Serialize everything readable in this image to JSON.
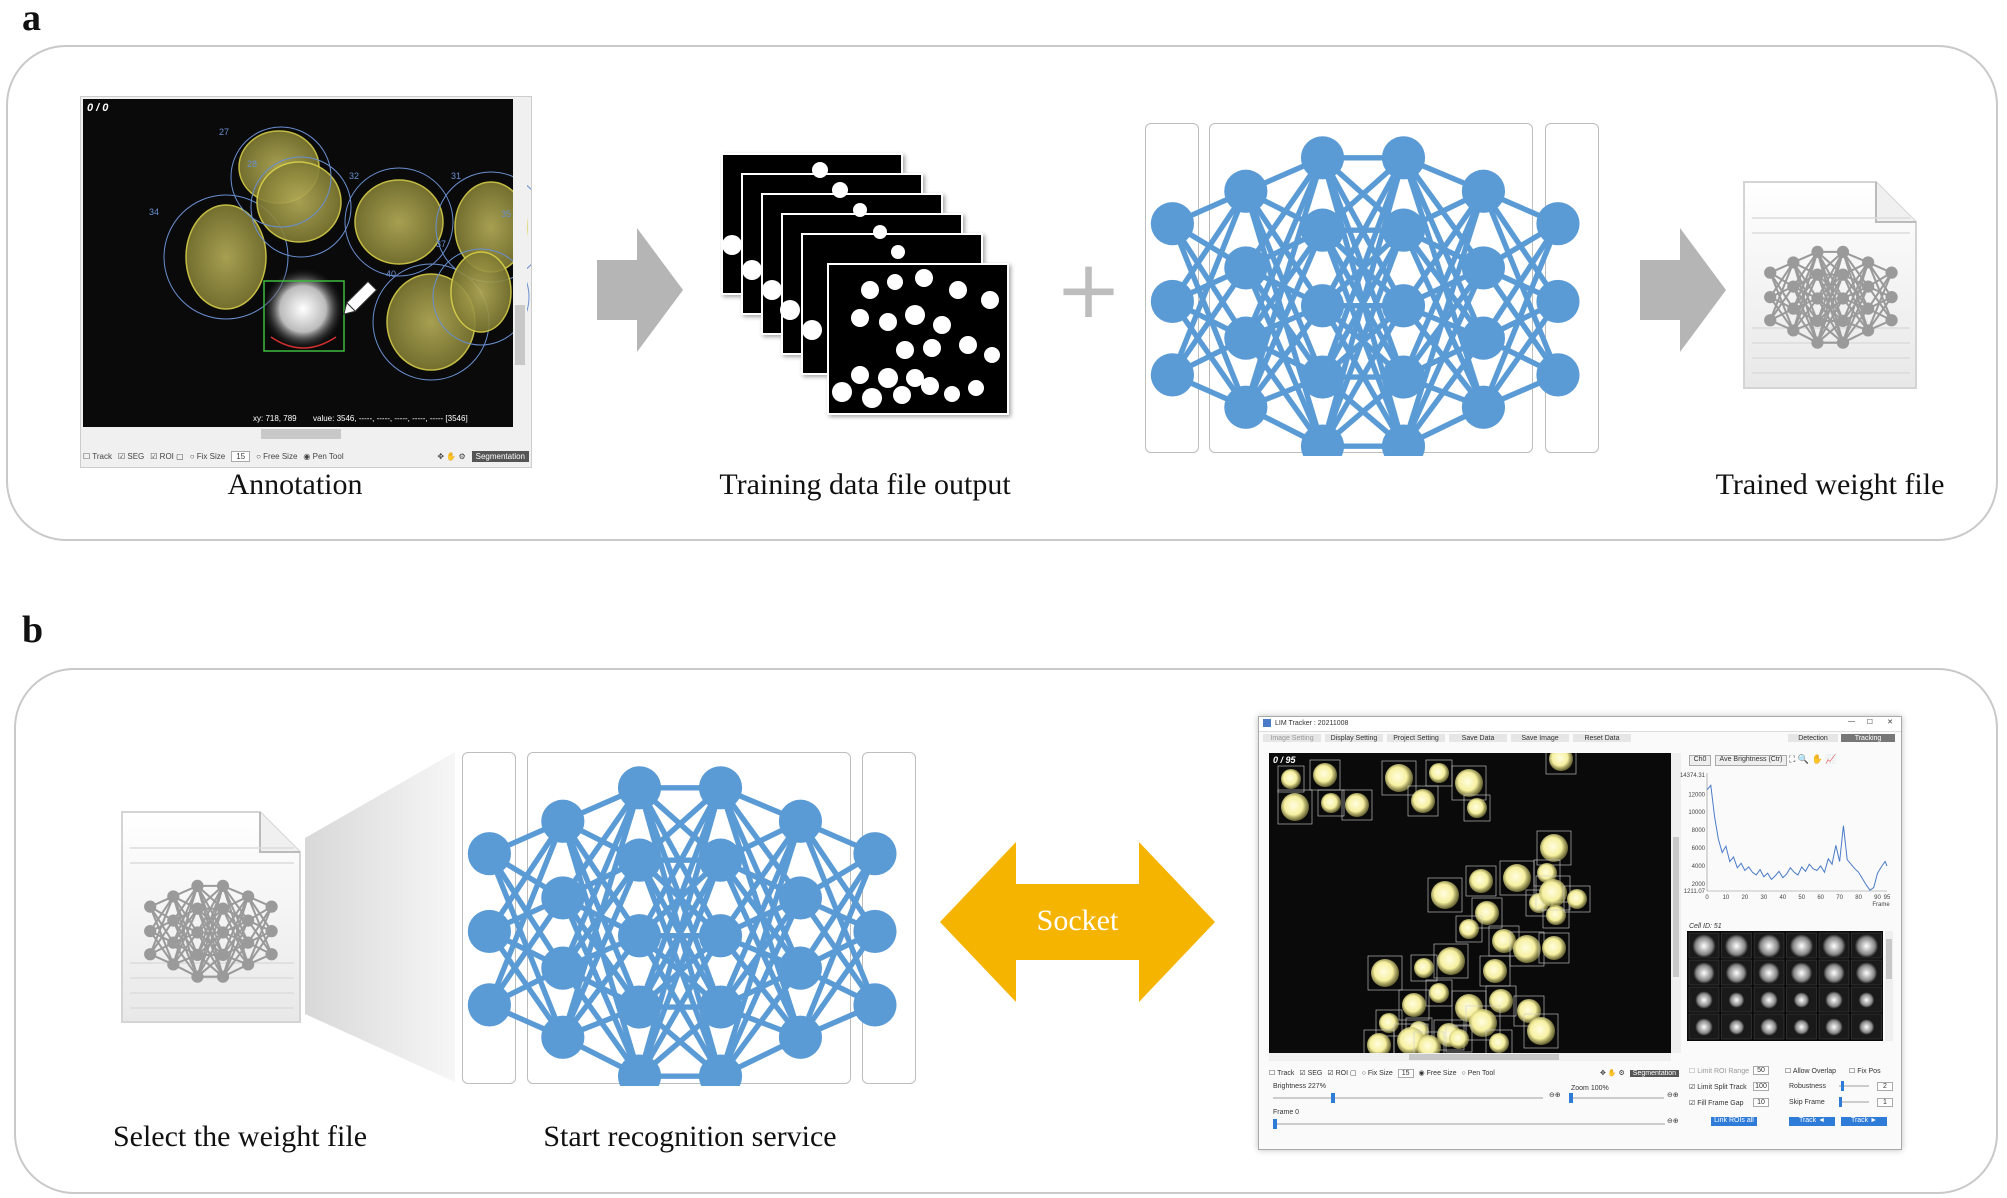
{
  "panel_a": {
    "letter": "a",
    "annotation_caption": "Annotation",
    "training_caption": "Training data file output",
    "trained_caption": "Trained weight file",
    "annotation_ui": {
      "frame_counter": "0 / 0",
      "cell_ids": [
        "27",
        "28",
        "32",
        "31",
        "34",
        "37",
        "40",
        "35"
      ],
      "status_xy": "xy: 718, 789",
      "status_value": "value: 3546, -----, -----, -----, -----, -----   [3546]",
      "toolbar": {
        "track": "Track",
        "seg": "SEG",
        "roi": "ROI",
        "fix_size": "Fix Size",
        "fix_size_value": "15",
        "free_size": "Free Size",
        "pen_tool": "Pen Tool",
        "segmentation": "Segmentation"
      }
    },
    "plus_symbol": "+"
  },
  "panel_b": {
    "letter": "b",
    "select_caption": "Select the weight file",
    "service_caption": "Start recognition service",
    "socket_label": "Socket",
    "app": {
      "window_title": "LIM Tracker : 20211008",
      "tabs": [
        "Image Setting",
        "Display Setting",
        "Project Setting",
        "Save Data",
        "Save Image",
        "Reset Data"
      ],
      "mode_tabs": [
        "Detection",
        "Tracking"
      ],
      "frame_counter": "0 / 95",
      "channel": "Ch0",
      "measure": "Ave Brightness (Ctr)",
      "chart_y_max": "14374.31",
      "chart_y_min": "1211.07",
      "cell_id": "Cell ID: 51",
      "bottom": {
        "track": "Track",
        "seg": "SEG",
        "roi": "ROI",
        "fix_size": "Fix Size",
        "fix_size_value": "15",
        "free_size": "Free Size",
        "pen_tool": "Pen Tool",
        "segmentation": "Segmentation",
        "brightness": "Brightness 227%",
        "zoom": "Zoom 100%",
        "frame": "Frame 0"
      },
      "track_settings": {
        "limit_roi_range": "Limit ROI Range",
        "limit_roi_value": "50",
        "limit_split_track": "Limit Split Track",
        "limit_split_value": "100",
        "fill_frame_gap": "Fill Frame Gap",
        "fill_gap_value": "10",
        "allow_overlap": "Allow Overlap",
        "fix_pos": "Fix Pos",
        "robustness": "Robustness",
        "robustness_value": "2",
        "skip_frame": "Skip Frame",
        "skip_value": "1",
        "link_rois_all": "Link ROIs all",
        "track_back": "Track ◄",
        "track_forward": "Track ►"
      }
    }
  },
  "chart_data": {
    "type": "line",
    "title": "",
    "xlabel": "Frame",
    "ylabel": "",
    "xlim": [
      0,
      95
    ],
    "ylim": [
      1211.07,
      14374.31
    ],
    "x_ticks": [
      "0",
      "10",
      "20",
      "30",
      "40",
      "50",
      "60",
      "70",
      "80",
      "90",
      "95"
    ],
    "y_ticks": [
      "2000",
      "4000",
      "6000",
      "8000",
      "10000",
      "12000"
    ],
    "series": [
      {
        "color": "#4a7bc8",
        "x": [
          0,
          2,
          4,
          6,
          8,
          10,
          12,
          14,
          16,
          18,
          20,
          22,
          24,
          26,
          28,
          30,
          32,
          34,
          36,
          38,
          40,
          42,
          44,
          46,
          48,
          50,
          52,
          54,
          56,
          58,
          60,
          62,
          64,
          66,
          68,
          70,
          72,
          74,
          76,
          78,
          80,
          82,
          84,
          86,
          88,
          90,
          92,
          94,
          95
        ],
        "y": [
          12500,
          13000,
          9500,
          7000,
          5500,
          6200,
          4500,
          5000,
          3800,
          4300,
          3500,
          3900,
          3300,
          3000,
          3600,
          2800,
          3200,
          2500,
          2900,
          3400,
          2700,
          3100,
          3800,
          3300,
          3000,
          3900,
          3400,
          4200,
          3700,
          3500,
          4000,
          3300,
          4800,
          4200,
          6300,
          4500,
          8500,
          4700,
          4200,
          3700,
          3300,
          2600,
          1900,
          1300,
          1600,
          3200,
          3900,
          4500,
          4000
        ]
      }
    ]
  },
  "colors": {
    "node": "#5b9bd5",
    "edge": "#5b9bd5",
    "arrow_gray": "#b5b5b5",
    "socket_arrow": "#f5b400",
    "socket_text": "#ffffff",
    "cell_yellow": "#f6f0a0"
  }
}
